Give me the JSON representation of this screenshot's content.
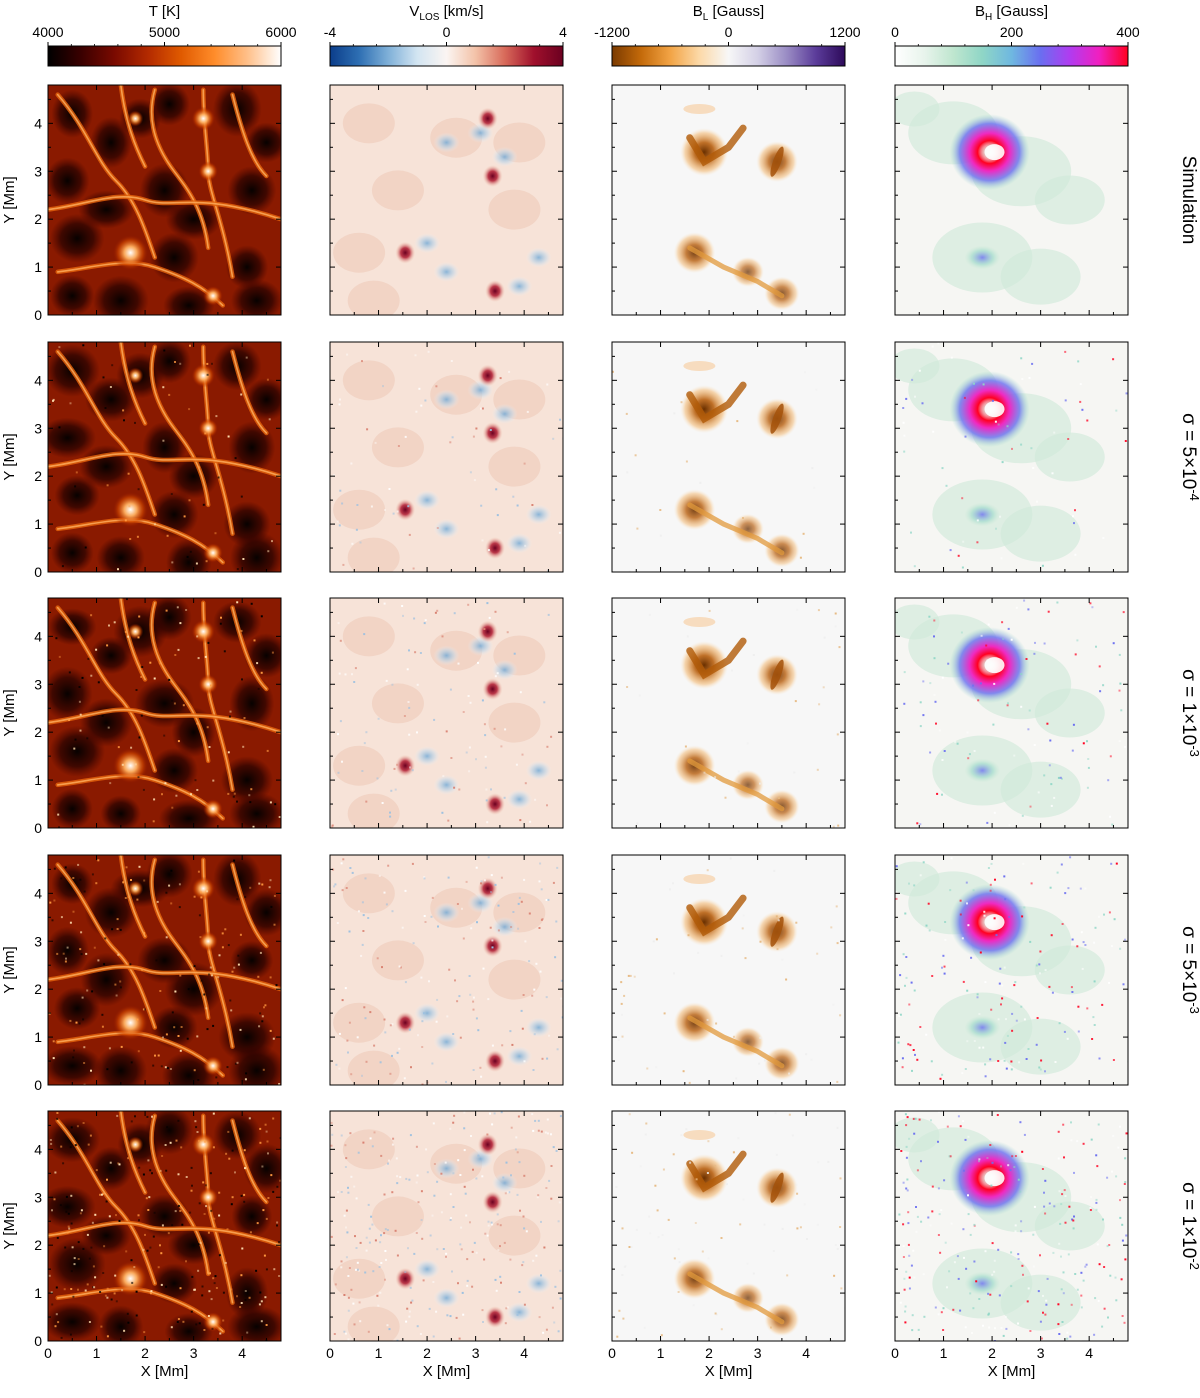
{
  "columns": [
    {
      "key": "temperature",
      "title_main": "T",
      "title_sub": "",
      "title_rest": " [K]",
      "ticks": [
        "4000",
        "5000",
        "6000"
      ],
      "colormap": [
        "#000000",
        "#3a0000",
        "#7a0a00",
        "#b32a00",
        "#e05a00",
        "#ff8c2a",
        "#ffc08a",
        "#ffffff"
      ]
    },
    {
      "key": "vlos",
      "title_main": "V",
      "title_sub": "LOS",
      "title_rest": " [km/s]",
      "ticks": [
        "-4",
        "0",
        "4"
      ],
      "colormap": [
        "#0b3d8a",
        "#2e6fb3",
        "#7fb0d8",
        "#d3e5f2",
        "#fbf5f2",
        "#f3c2a8",
        "#d86a5a",
        "#a0102c",
        "#6b0020"
      ]
    },
    {
      "key": "bl",
      "title_main": "B",
      "title_sub": "L",
      "title_rest": " [Gauss]",
      "ticks": [
        "-1200",
        "0",
        "1200"
      ],
      "colormap": [
        "#7a3a00",
        "#c46a0a",
        "#f2a445",
        "#fcd9a8",
        "#f7f7f7",
        "#d4d0e6",
        "#9a8cc4",
        "#5b3c9a",
        "#2d0a5a"
      ]
    },
    {
      "key": "bh",
      "title_main": "B",
      "title_sub": "H",
      "title_rest": " [Gauss]",
      "ticks": [
        "0",
        "200",
        "400"
      ],
      "colormap": [
        "#ffffff",
        "#e8f4ec",
        "#bfe6cf",
        "#8fd6c6",
        "#6fb8e0",
        "#6a6ef0",
        "#b03cf0",
        "#f020c0",
        "#ff0020"
      ]
    }
  ],
  "rows": [
    {
      "label": "Simulation",
      "label_prefix": "",
      "label_base": "",
      "label_exp": ""
    },
    {
      "label": "",
      "label_prefix": "σ = 5×10",
      "label_base": "",
      "label_exp": "-4"
    },
    {
      "label": "",
      "label_prefix": "σ = 1×10",
      "label_base": "",
      "label_exp": "-3"
    },
    {
      "label": "",
      "label_prefix": "σ = 5×10",
      "label_base": "",
      "label_exp": "-3"
    },
    {
      "label": "",
      "label_prefix": "σ = 1×10",
      "label_base": "",
      "label_exp": "-2"
    }
  ],
  "axes": {
    "xlabel": "X [Mm]",
    "ylabel": "Y [Mm]",
    "xticks": [
      "0",
      "1",
      "2",
      "3",
      "4"
    ],
    "yticks": [
      "0",
      "1",
      "2",
      "3",
      "4"
    ],
    "range": [
      0,
      4.8
    ]
  },
  "features": {
    "bl_negative_blobs": [
      {
        "x": 1.9,
        "y": 3.4,
        "strength": 1.0
      },
      {
        "x": 3.4,
        "y": 3.2,
        "strength": 0.8
      },
      {
        "x": 1.7,
        "y": 1.3,
        "strength": 0.8
      },
      {
        "x": 2.8,
        "y": 0.9,
        "strength": 0.5
      },
      {
        "x": 3.5,
        "y": 0.45,
        "strength": 0.6
      }
    ],
    "bh_ring": {
      "x": 1.95,
      "y": 3.4,
      "peak_gauss": 400
    },
    "vlos_red_spots": [
      {
        "x": 3.25,
        "y": 4.1
      },
      {
        "x": 3.35,
        "y": 2.9
      },
      {
        "x": 1.55,
        "y": 1.3
      },
      {
        "x": 3.4,
        "y": 0.5
      }
    ]
  }
}
